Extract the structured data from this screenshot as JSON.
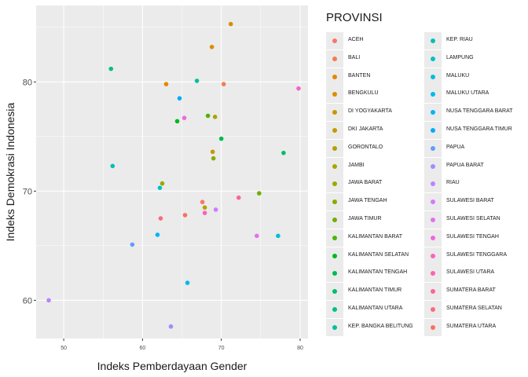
{
  "chart_data": {
    "type": "scatter",
    "title": "",
    "xlabel": "Indeks Pemberdayaan Gender",
    "ylabel": "Indeks Demokrasi Indonesia",
    "xlim": [
      46.5,
      81
    ],
    "ylim": [
      56.5,
      87
    ],
    "x_ticks": [
      50,
      60,
      70,
      80
    ],
    "x_tick_labels": [
      "50",
      "60",
      "70",
      "80"
    ],
    "y_ticks": [
      60,
      70,
      80
    ],
    "y_tick_labels": [
      "60",
      "70",
      "80"
    ],
    "grid": true,
    "legend_title": "PROVINSI",
    "legend_position": "right",
    "points": [
      {
        "province": "ACEH",
        "x": 67.6,
        "y": 69.0
      },
      {
        "province": "BALI",
        "x": 70.3,
        "y": 79.8
      },
      {
        "province": "BANTEN",
        "x": 63.0,
        "y": 79.8
      },
      {
        "province": "BENGKULU",
        "x": 68.8,
        "y": 83.2
      },
      {
        "province": "DI YOGYAKARTA",
        "x": 71.2,
        "y": 85.3
      },
      {
        "province": "DKI JAKARTA",
        "x": 68.9,
        "y": 73.6
      },
      {
        "province": "GORONTALO",
        "x": 67.9,
        "y": 68.5
      },
      {
        "province": "JAMBI",
        "x": 69.2,
        "y": 76.8
      },
      {
        "province": "JAWA BARAT",
        "x": 62.5,
        "y": 70.7
      },
      {
        "province": "JAWA TENGAH",
        "x": 69.0,
        "y": 73.0
      },
      {
        "province": "JAWA TIMUR",
        "x": 74.8,
        "y": 69.8
      },
      {
        "province": "KALIMANTAN BARAT",
        "x": 68.3,
        "y": 76.9
      },
      {
        "province": "KALIMANTAN SELATAN",
        "x": 64.4,
        "y": 76.4
      },
      {
        "province": "KALIMANTAN TENGAH",
        "x": 70.0,
        "y": 74.8
      },
      {
        "province": "KALIMANTAN TIMUR",
        "x": 77.9,
        "y": 73.5
      },
      {
        "province": "KALIMANTAN UTARA",
        "x": 56.0,
        "y": 81.2
      },
      {
        "province": "KEP. BANGKA BELITUNG",
        "x": 66.9,
        "y": 80.1
      },
      {
        "province": "KEP. RIAU",
        "x": 56.2,
        "y": 72.3
      },
      {
        "province": "LAMPUNG",
        "x": 62.2,
        "y": 70.3
      },
      {
        "province": "MALUKU",
        "x": 77.2,
        "y": 65.9
      },
      {
        "province": "MALUKU UTARA",
        "x": 65.7,
        "y": 61.6
      },
      {
        "province": "NUSA TENGGARA BARAT",
        "x": 61.9,
        "y": 66.0
      },
      {
        "province": "NUSA TENGGARA TIMUR",
        "x": 64.7,
        "y": 78.5
      },
      {
        "province": "PAPUA",
        "x": 58.7,
        "y": 65.1
      },
      {
        "province": "PAPUA BARAT",
        "x": 63.6,
        "y": 57.6
      },
      {
        "province": "RIAU",
        "x": 48.1,
        "y": 60.0
      },
      {
        "province": "SULAWESI BARAT",
        "x": 69.3,
        "y": 68.3
      },
      {
        "province": "SULAWESI SELATAN",
        "x": 74.5,
        "y": 65.9
      },
      {
        "province": "SULAWESI TENGAH",
        "x": 65.3,
        "y": 76.7
      },
      {
        "province": "SULAWESI TENGGARA",
        "x": 79.8,
        "y": 79.4
      },
      {
        "province": "SULAWESI UTARA",
        "x": 67.9,
        "y": 68.0
      },
      {
        "province": "SUMATERA BARAT",
        "x": 72.2,
        "y": 69.4
      },
      {
        "province": "SUMATERA SELATAN",
        "x": 62.3,
        "y": 67.5
      },
      {
        "province": "SUMATERA UTARA",
        "x": 65.4,
        "y": 67.8
      }
    ]
  },
  "legend": {
    "items": [
      {
        "label": "ACEH",
        "color": "#F8766D"
      },
      {
        "label": "BALI",
        "color": "#F27D52"
      },
      {
        "label": "BANTEN",
        "color": "#E58700"
      },
      {
        "label": "BENGKULU",
        "color": "#DB8E00"
      },
      {
        "label": "DI YOGYAKARTA",
        "color": "#CF9400"
      },
      {
        "label": "DKI JAKARTA",
        "color": "#C49A00"
      },
      {
        "label": "GORONTALO",
        "color": "#B79F00"
      },
      {
        "label": "JAMBI",
        "color": "#A9A400"
      },
      {
        "label": "JAWA BARAT",
        "color": "#99A800"
      },
      {
        "label": "JAWA TENGAH",
        "color": "#86AC00"
      },
      {
        "label": "JAWA TIMUR",
        "color": "#6FB000"
      },
      {
        "label": "KALIMANTAN BARAT",
        "color": "#4EB400"
      },
      {
        "label": "KALIMANTAN SELATAN",
        "color": "#00B81F"
      },
      {
        "label": "KALIMANTAN TENGAH",
        "color": "#00BA4F"
      },
      {
        "label": "KALIMANTAN TIMUR",
        "color": "#00BC6F"
      },
      {
        "label": "KALIMANTAN UTARA",
        "color": "#00BE89"
      },
      {
        "label": "KEP. BANGKA BELITUNG",
        "color": "#00BFA0"
      },
      {
        "label": "KEP. RIAU",
        "color": "#00C0B5"
      },
      {
        "label": "LAMPUNG",
        "color": "#00C0C9"
      },
      {
        "label": "MALUKU",
        "color": "#00BEDB"
      },
      {
        "label": "MALUKU UTARA",
        "color": "#00BAEB"
      },
      {
        "label": "NUSA TENGGARA BARAT",
        "color": "#00B4F8"
      },
      {
        "label": "NUSA TENGGARA TIMUR",
        "color": "#00ABFD"
      },
      {
        "label": "PAPUA",
        "color": "#619CFF"
      },
      {
        "label": "PAPUA BARAT",
        "color": "#9A8FFF"
      },
      {
        "label": "RIAU",
        "color": "#BB84FF"
      },
      {
        "label": "SULAWESI BARAT",
        "color": "#D27AFF"
      },
      {
        "label": "SULAWESI SELATAN",
        "color": "#E470F1"
      },
      {
        "label": "SULAWESI TENGAH",
        "color": "#F066DF"
      },
      {
        "label": "SULAWESI TENGGARA",
        "color": "#F962C9"
      },
      {
        "label": "SULAWESI UTARA",
        "color": "#FD62B1"
      },
      {
        "label": "SUMATERA BARAT",
        "color": "#FE6496"
      },
      {
        "label": "SUMATERA SELATAN",
        "color": "#FD6A7C"
      },
      {
        "label": "SUMATERA UTARA",
        "color": "#F96F62"
      }
    ]
  }
}
